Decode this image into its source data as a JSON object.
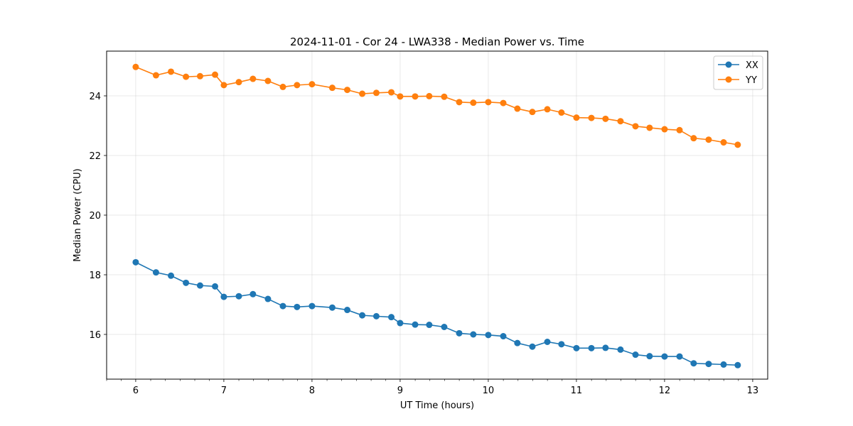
{
  "chart_data": {
    "type": "line",
    "title": "2024-11-01 - Cor 24 - LWA338 - Median Power vs. Time",
    "xlabel": "UT Time (hours)",
    "ylabel": "Median Power (CPU)",
    "xlim": [
      5.67,
      13.17
    ],
    "ylim": [
      14.5,
      25.5
    ],
    "xticks": [
      6,
      7,
      8,
      9,
      10,
      11,
      12,
      13
    ],
    "yticks": [
      16,
      18,
      20,
      22,
      24
    ],
    "x_minor_step": 0.1667,
    "grid": true,
    "legend_position": "top-right",
    "x": [
      6.0,
      6.23,
      6.4,
      6.57,
      6.73,
      6.9,
      7.0,
      7.17,
      7.33,
      7.5,
      7.67,
      7.83,
      8.0,
      8.23,
      8.4,
      8.57,
      8.73,
      8.9,
      9.0,
      9.17,
      9.33,
      9.5,
      9.67,
      9.83,
      10.0,
      10.17,
      10.33,
      10.5,
      10.67,
      10.83,
      11.0,
      11.17,
      11.33,
      11.5,
      11.67,
      11.83,
      12.0,
      12.17,
      12.33,
      12.5,
      12.67,
      12.83
    ],
    "series": [
      {
        "name": "XX",
        "color": "#1f77b4",
        "values": [
          18.42,
          18.08,
          17.97,
          17.73,
          17.64,
          17.61,
          17.26,
          17.28,
          17.35,
          17.19,
          16.95,
          16.92,
          16.95,
          16.9,
          16.82,
          16.64,
          16.61,
          16.58,
          16.38,
          16.33,
          16.32,
          16.25,
          16.04,
          16.0,
          15.98,
          15.94,
          15.71,
          15.59,
          15.75,
          15.67,
          15.54,
          15.54,
          15.55,
          15.49,
          15.32,
          15.27,
          15.26,
          15.26,
          15.03,
          15.01,
          14.99,
          14.97
        ]
      },
      {
        "name": "YY",
        "color": "#ff7f0e",
        "values": [
          24.97,
          24.69,
          24.81,
          24.64,
          24.66,
          24.71,
          24.36,
          24.46,
          24.57,
          24.5,
          24.3,
          24.36,
          24.39,
          24.27,
          24.2,
          24.07,
          24.1,
          24.12,
          23.98,
          23.98,
          23.99,
          23.97,
          23.79,
          23.77,
          23.79,
          23.76,
          23.57,
          23.46,
          23.55,
          23.44,
          23.27,
          23.26,
          23.23,
          23.15,
          22.98,
          22.93,
          22.88,
          22.85,
          22.58,
          22.53,
          22.44,
          22.36
        ]
      }
    ]
  }
}
